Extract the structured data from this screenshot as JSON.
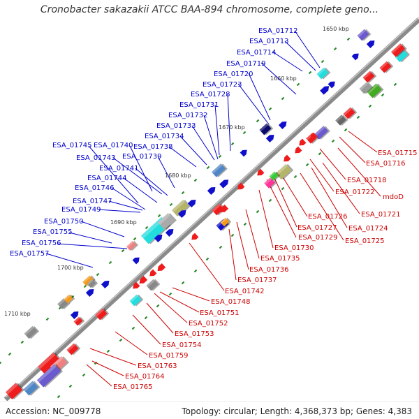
{
  "title": "Cronobacter sakazakii ATCC BAA-894 chromosome, complete geno...",
  "footer": {
    "accession": "Accession: NC_009778",
    "topology": "Topology: circular; Length: 4,368,373 bp; Genes: 4,383"
  },
  "colors": {
    "outer_label": "#0000cc",
    "inner_label": "#cc0000",
    "backbone": "#888888",
    "tick": "#2a8a2a"
  },
  "kbp_marks": [
    "1650 kbp",
    "1660 kbp",
    "1670 kbp",
    "1680 kbp",
    "1690 kbp",
    "1700 kbp",
    "1710 kbp"
  ],
  "outer_genes": [
    "ESA_01712",
    "ESA_01713",
    "ESA_01714",
    "ESA_01719",
    "ESA_01720",
    "ESA_01723",
    "ESA_01728",
    "ESA_01731",
    "ESA_01732",
    "ESA_01733",
    "ESA_01734",
    "ESA_01738",
    "ESA_01739",
    "ESA_01740",
    "ESA_01745",
    "ESA_01743",
    "ESA_01741",
    "ESA_01744",
    "ESA_01746",
    "ESA_01747",
    "ESA_01749",
    "ESA_01750",
    "ESA_01755",
    "ESA_01756",
    "ESA_01757"
  ],
  "inner_genes": [
    "ESA_01715",
    "ESA_01716",
    "ESA_01718",
    "ESA_01722",
    "mdoD",
    "ESA_01721",
    "ESA_01724",
    "ESA_01725",
    "ESA_01726",
    "ESA_01727",
    "ESA_01729",
    "ESA_01730",
    "ESA_01735",
    "ESA_01736",
    "ESA_01737",
    "ESA_01742",
    "ESA_01748",
    "ESA_01751",
    "ESA_01752",
    "ESA_01753",
    "ESA_01754",
    "ESA_01759",
    "ESA_01763",
    "ESA_01764",
    "ESA_01765"
  ]
}
